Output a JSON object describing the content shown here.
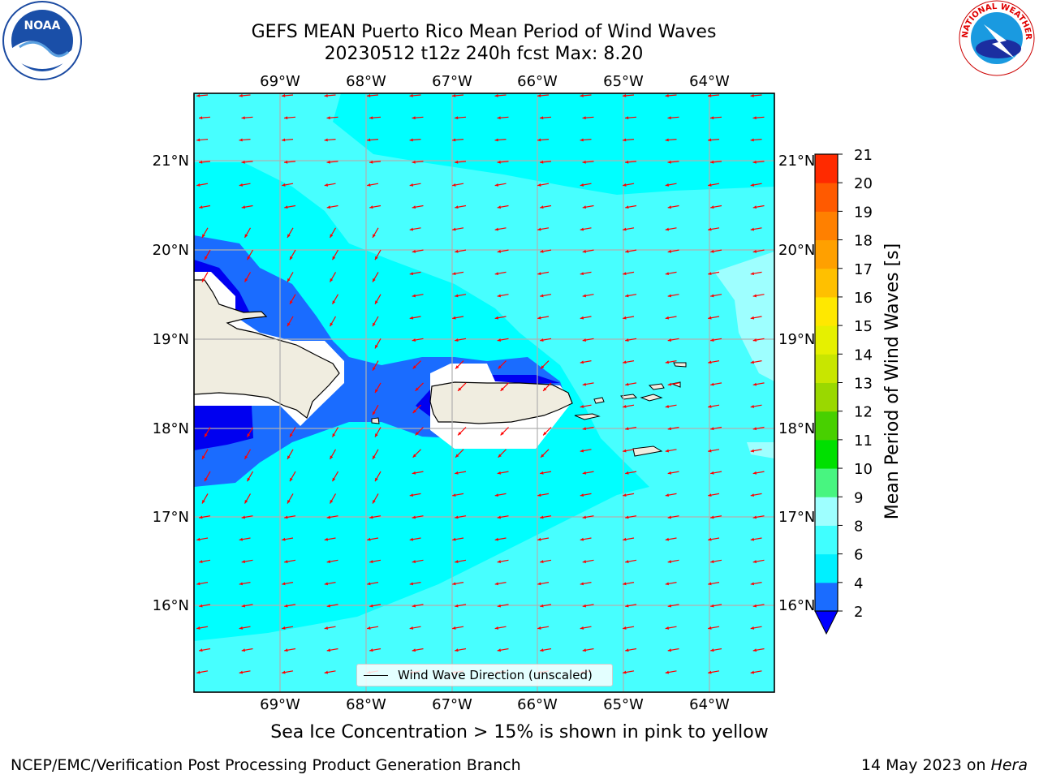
{
  "title_line1": "GEFS MEAN Puerto Rico Mean Period of Wind Waves",
  "title_line2": "20230512 t12z 240h fcst   Max: 8.20",
  "subtitle": "Sea Ice Concentration > 15% is shown in pink to yellow",
  "footer_left": "NCEP/EMC/Verification Post Processing Product Generation Branch",
  "footer_date": "14 May 2023 on ",
  "footer_machine": "Hera",
  "legend_label": "Wind Wave Direction (unscaled)",
  "colorbar": {
    "label": "Mean Period of Wind Waves [s]",
    "ticks": [
      "2",
      "4",
      "6",
      "8",
      "9",
      "10",
      "11",
      "12",
      "13",
      "14",
      "15",
      "16",
      "17",
      "18",
      "19",
      "20",
      "21"
    ],
    "colors": [
      "#1a6cff",
      "#00f0ff",
      "#40ffff",
      "#9effff",
      "#48f580",
      "#00e000",
      "#48d000",
      "#9ad800",
      "#c8e600",
      "#e6f000",
      "#ffe800",
      "#ffc000",
      "#ffa000",
      "#ff8000",
      "#ff5a00",
      "#ff2a00"
    ],
    "extend_color": "#0000ff"
  },
  "map": {
    "lon_labels": [
      "69°W",
      "68°W",
      "67°W",
      "66°W",
      "65°W",
      "64°W"
    ],
    "lat_labels": [
      "21°N",
      "20°N",
      "19°N",
      "18°N",
      "17°N",
      "16°N"
    ],
    "colors": {
      "sea_light": "#47ffff",
      "sea_cyan": "#00ffff",
      "sea_pale": "#9effff",
      "blue_mid": "#1a6cff",
      "blue_dark": "#0000f0",
      "land": "#f0ede0",
      "arrow": "#ff0000",
      "grid": "#b0b0b0"
    }
  },
  "logos": {
    "noaa": "NOAA",
    "nws_text": "NATIONAL WEATHER SERVICE"
  }
}
